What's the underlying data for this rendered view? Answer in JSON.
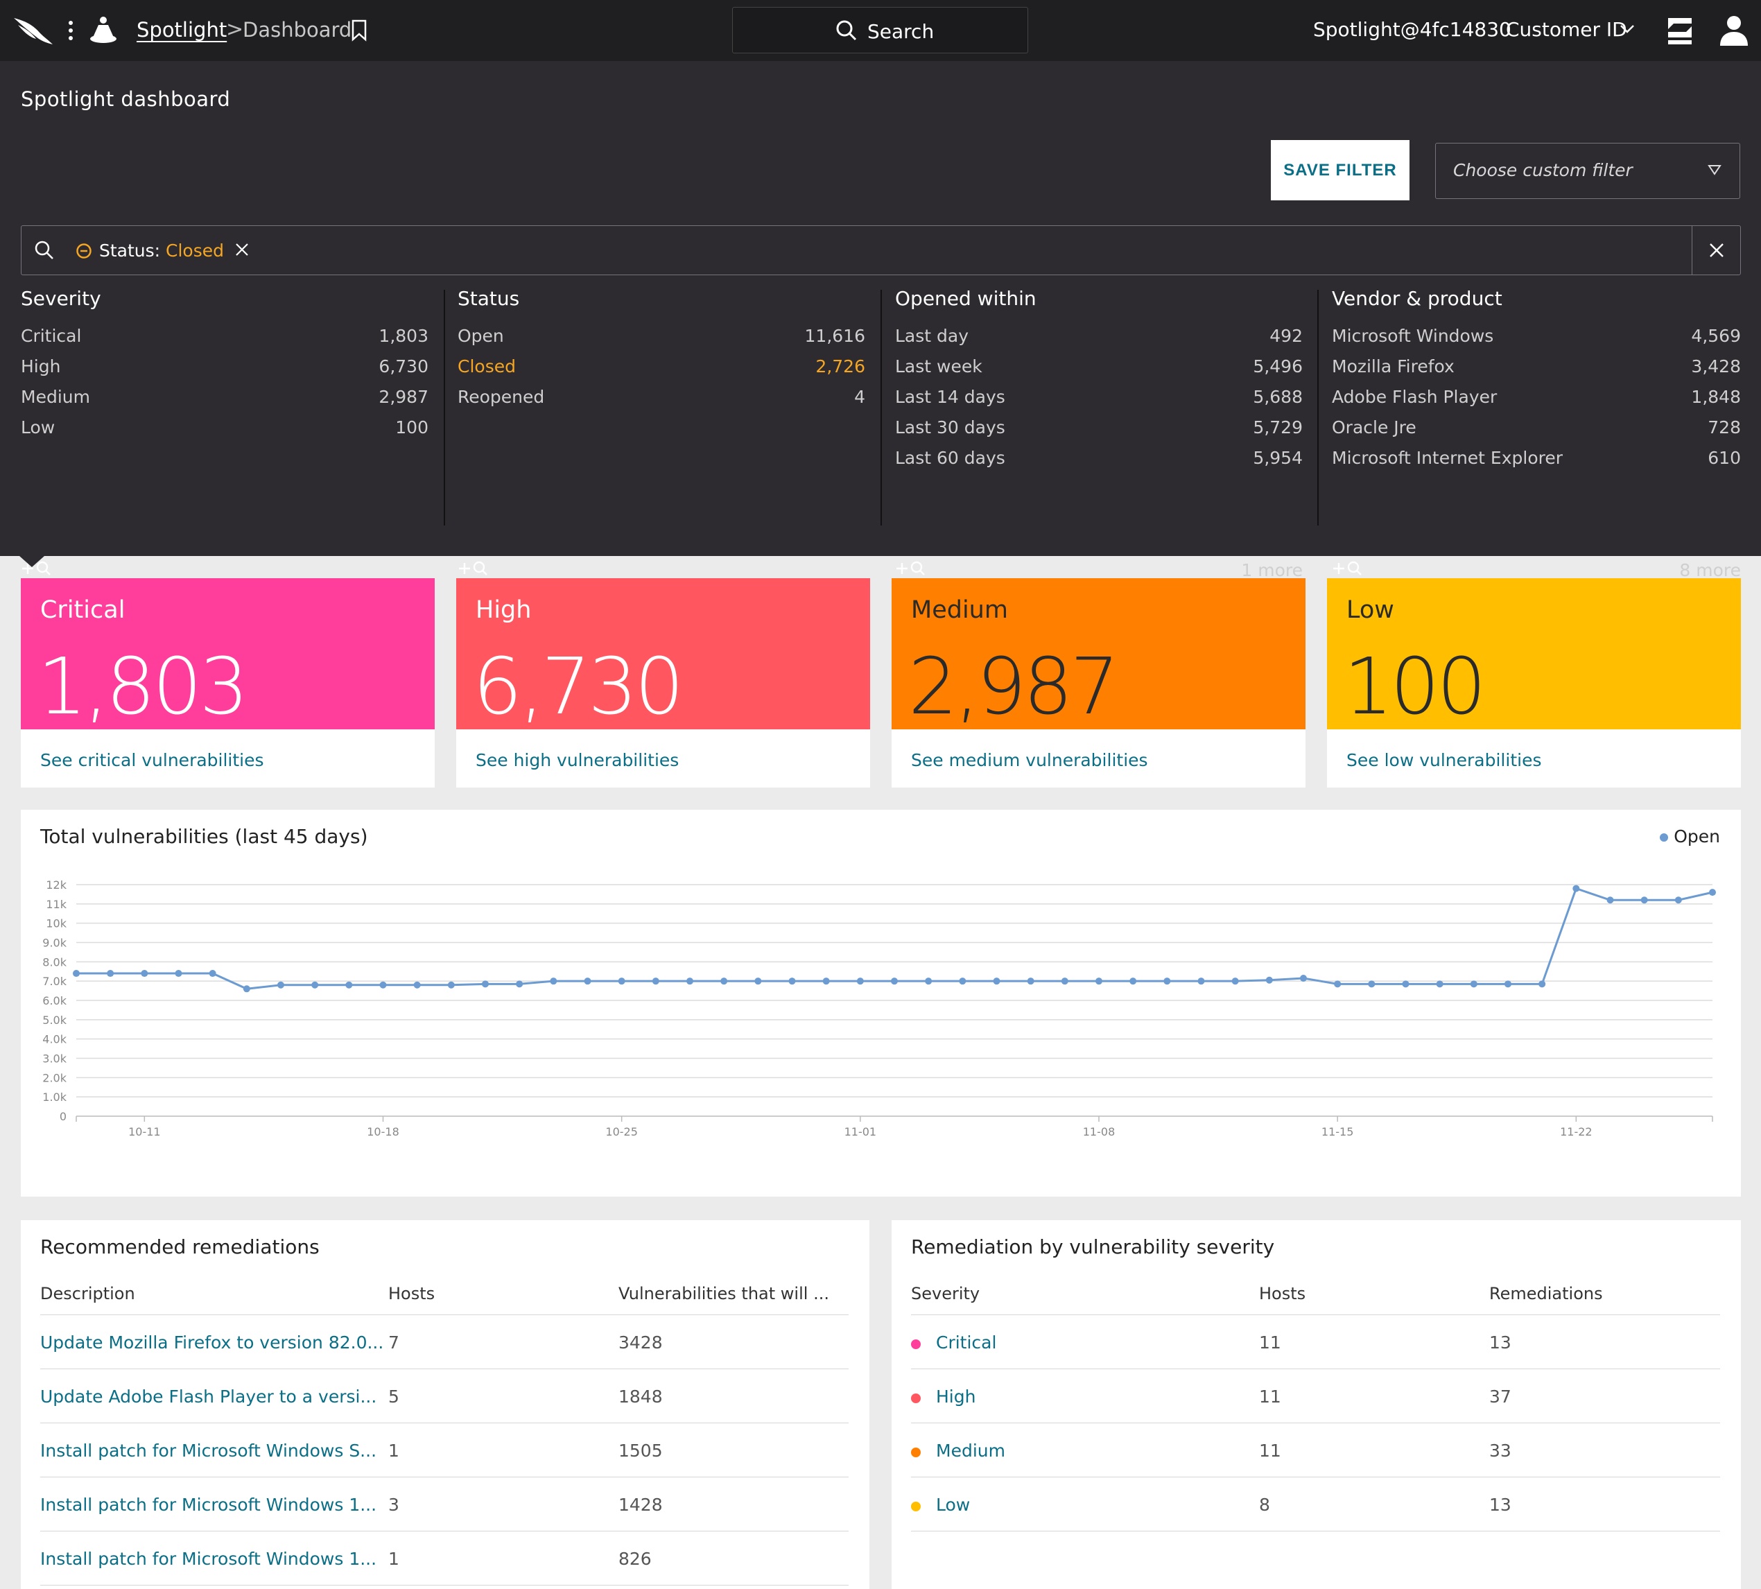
{
  "topbar": {
    "app_name": "Spotlight",
    "breadcrumb_sep": ">",
    "page_name": "Dashboard",
    "search_label": "Search",
    "user": "Spotlight@4fc14830",
    "customer_id_label": "Customer ID"
  },
  "panel": {
    "title": "Spotlight dashboard",
    "save_filter_label": "SAVE FILTER",
    "custom_filter_placeholder": "Choose custom filter",
    "active_filter": {
      "key": "Status",
      "sep": ":",
      "value": "Closed"
    }
  },
  "facets": [
    {
      "title": "Severity",
      "rows": [
        {
          "label": "Critical",
          "count": "1,803"
        },
        {
          "label": "High",
          "count": "6,730"
        },
        {
          "label": "Medium",
          "count": "2,987"
        },
        {
          "label": "Low",
          "count": "100"
        }
      ],
      "more": ""
    },
    {
      "title": "Status",
      "rows": [
        {
          "label": "Open",
          "count": "11,616"
        },
        {
          "label": "Closed",
          "count": "2,726",
          "active": true
        },
        {
          "label": "Reopened",
          "count": "4"
        }
      ],
      "more": ""
    },
    {
      "title": "Opened within",
      "rows": [
        {
          "label": "Last day",
          "count": "492"
        },
        {
          "label": "Last week",
          "count": "5,496"
        },
        {
          "label": "Last 14 days",
          "count": "5,688"
        },
        {
          "label": "Last 30 days",
          "count": "5,729"
        },
        {
          "label": "Last 60 days",
          "count": "5,954"
        }
      ],
      "more": "1 more"
    },
    {
      "title": "Vendor & product",
      "rows": [
        {
          "label": "Microsoft Windows",
          "count": "4,569"
        },
        {
          "label": "Mozilla Firefox",
          "count": "3,428"
        },
        {
          "label": "Adobe Flash Player",
          "count": "1,848"
        },
        {
          "label": "Oracle Jre",
          "count": "728"
        },
        {
          "label": "Microsoft Internet Explorer",
          "count": "610"
        }
      ],
      "more": "8 more"
    }
  ],
  "tiles": [
    {
      "label": "Critical",
      "value": "1,803",
      "link": "See critical vulnerabilities",
      "color": "#ff3d9a",
      "text_color": "#ffffff"
    },
    {
      "label": "High",
      "value": "6,730",
      "link": "See high vulnerabilities",
      "color": "#ff5660",
      "text_color": "#ffffff"
    },
    {
      "label": "Medium",
      "value": "2,987",
      "link": "See medium vulnerabilities",
      "color": "#ff8000",
      "text_color": "#2a2a2a"
    },
    {
      "label": "Low",
      "value": "100",
      "link": "See low vulnerabilities",
      "color": "#ffbf00",
      "text_color": "#2a2a2a"
    }
  ],
  "chart_data": {
    "type": "line",
    "title": "Total vulnerabilities (last 45 days)",
    "legend": [
      "Open"
    ],
    "legend_position": "top-right",
    "grid": true,
    "y_ticks": [
      "0",
      "1.0k",
      "2.0k",
      "3.0k",
      "4.0k",
      "5.0k",
      "6.0k",
      "7.0k",
      "8.0k",
      "9.0k",
      "10k",
      "11k",
      "12k"
    ],
    "ylim": [
      0,
      12000
    ],
    "x_ticks": [
      "10-11",
      "10-18",
      "10-25",
      "11-01",
      "11-08",
      "11-15",
      "11-22"
    ],
    "x_tick_index": [
      2,
      9,
      16,
      23,
      30,
      37,
      44
    ],
    "series": [
      {
        "name": "Open",
        "color": "#6b9bd1",
        "values": [
          7400,
          7400,
          7400,
          7400,
          7400,
          6600,
          6800,
          6800,
          6800,
          6800,
          6800,
          6800,
          6850,
          6850,
          7000,
          7000,
          7000,
          7000,
          7000,
          7000,
          7000,
          7000,
          7000,
          7000,
          7000,
          7000,
          7000,
          7000,
          7000,
          7000,
          7000,
          7000,
          7000,
          7000,
          7000,
          7050,
          7150,
          6850,
          6850,
          6850,
          6850,
          6850,
          6850,
          6850,
          11800,
          11200,
          11200,
          11200,
          11600
        ]
      }
    ]
  },
  "remediations": {
    "title": "Recommended remediations",
    "headers": [
      "Description",
      "Hosts",
      "Vulnerabilities that will ..."
    ],
    "rows": [
      [
        "Update Mozilla Firefox to version 82.0...",
        "7",
        "3428"
      ],
      [
        "Update Adobe Flash Player to a versi...",
        "5",
        "1848"
      ],
      [
        "Install patch for Microsoft Windows S...",
        "1",
        "1505"
      ],
      [
        "Install patch for Microsoft Windows 1...",
        "3",
        "1428"
      ],
      [
        "Install patch for Microsoft Windows 1...",
        "1",
        "826"
      ]
    ]
  },
  "by_severity": {
    "title": "Remediation by vulnerability severity",
    "headers": [
      "Severity",
      "Hosts",
      "Remediations"
    ],
    "rows": [
      {
        "severity": "Critical",
        "hosts": "11",
        "remediations": "13",
        "color": "#ff3d9a"
      },
      {
        "severity": "High",
        "hosts": "11",
        "remediations": "37",
        "color": "#ff5660"
      },
      {
        "severity": "Medium",
        "hosts": "11",
        "remediations": "33",
        "color": "#ff8000"
      },
      {
        "severity": "Low",
        "hosts": "8",
        "remediations": "13",
        "color": "#ffbf00"
      }
    ]
  }
}
